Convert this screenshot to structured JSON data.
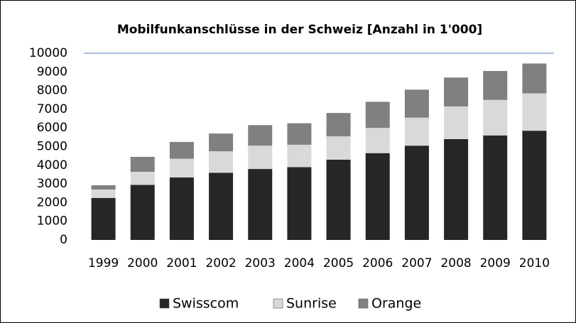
{
  "chart_data": {
    "type": "stacked_bar",
    "title": "Mobilfunkanschlüsse in der Schweiz [Anzahl in 1'000]",
    "categories": [
      "1999",
      "2000",
      "2001",
      "2002",
      "2003",
      "2004",
      "2005",
      "2006",
      "2007",
      "2008",
      "2009",
      "2010"
    ],
    "series": [
      {
        "name": "Swisscom",
        "color": "#262626",
        "values": [
          2250,
          2950,
          3350,
          3600,
          3800,
          3900,
          4300,
          4650,
          5050,
          5400,
          5600,
          5850
        ]
      },
      {
        "name": "Sunrise",
        "color": "#d9d9d9",
        "values": [
          450,
          700,
          1000,
          1150,
          1250,
          1200,
          1250,
          1350,
          1500,
          1750,
          1900,
          2000
        ]
      },
      {
        "name": "Orange",
        "color": "#808080",
        "values": [
          230,
          800,
          900,
          950,
          1100,
          1150,
          1250,
          1400,
          1500,
          1550,
          1550,
          1600
        ]
      }
    ],
    "ylim": [
      0,
      10000
    ],
    "yticks": [
      0,
      1000,
      2000,
      3000,
      4000,
      5000,
      6000,
      7000,
      8000,
      9000,
      10000
    ],
    "grid": false,
    "legend": "bottom"
  }
}
